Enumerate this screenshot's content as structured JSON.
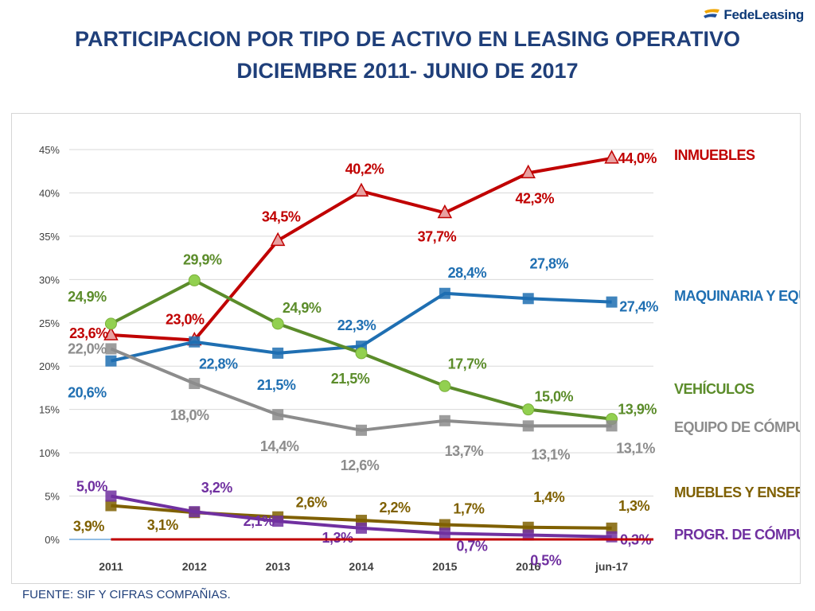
{
  "logo": {
    "text": "FedeLeasing",
    "prefix": "Fede",
    "suffix": "Leasing"
  },
  "title": {
    "line1": "PARTICIPACION POR TIPO DE ACTIVO EN  LEASING OPERATIVO",
    "line2": "DICIEMBRE 2011- JUNIO DE 2017"
  },
  "footer": "FUENTE: SIF Y CIFRAS COMPAÑIAS.",
  "chart_data": {
    "type": "line",
    "title": "PARTICIPACION POR TIPO DE ACTIVO EN  LEASING OPERATIVO DICIEMBRE 2011- JUNIO DE 2017",
    "categories": [
      "2011",
      "2012",
      "2013",
      "2014",
      "2015",
      "2016",
      "jun-17"
    ],
    "ylim": [
      0,
      45
    ],
    "yticks": [
      0,
      5,
      10,
      15,
      20,
      25,
      30,
      35,
      40,
      45
    ],
    "ytick_labels": [
      "0%",
      "5%",
      "10%",
      "15%",
      "20%",
      "25%",
      "30%",
      "35%",
      "40%",
      "45%"
    ],
    "grid": true,
    "series": [
      {
        "name": "INMUEBLES",
        "color": "#c00000",
        "marker": "triangle",
        "values": [
          23.6,
          23.0,
          34.5,
          40.2,
          37.7,
          42.3,
          44.0
        ],
        "labels": [
          "23,6%",
          "23,0%",
          "34,5%",
          "40,2%",
          "37,7%",
          "42,3%",
          "44,0%"
        ]
      },
      {
        "name": "MAQUINARIA  Y EQUIPO",
        "color": "#1f6fb2",
        "marker": "square",
        "values": [
          20.6,
          22.8,
          21.5,
          22.3,
          28.4,
          27.8,
          27.4
        ],
        "labels": [
          "20,6%",
          "22,8%",
          "21,5%",
          "22,3%",
          "28,4%",
          "27,8%",
          "27,4%"
        ]
      },
      {
        "name": "VEHÍCULOS",
        "color": "#5b8c2a",
        "marker": "circle",
        "values": [
          24.9,
          29.9,
          24.9,
          21.5,
          17.7,
          15.0,
          13.9
        ],
        "labels": [
          "24,9%",
          "29,9%",
          "24,9%",
          "21,5%",
          "17,7%",
          "15,0%",
          "13,9%"
        ]
      },
      {
        "name": "EQUIPO DE  CÓMPUTO",
        "color": "#8c8c8c",
        "marker": "square",
        "values": [
          22.0,
          18.0,
          14.4,
          12.6,
          13.7,
          13.1,
          13.1
        ],
        "labels": [
          "22,0%",
          "18,0%",
          "14,4%",
          "12,6%",
          "13,7%",
          "13,1%",
          "13,1%"
        ]
      },
      {
        "name": "MUEBLES Y ENSERES",
        "color": "#7f6000",
        "marker": "square",
        "values": [
          3.9,
          3.1,
          2.6,
          2.2,
          1.7,
          1.4,
          1.3
        ],
        "labels": [
          "3,9%",
          "3,1%",
          "2,6%",
          "2,2%",
          "1,7%",
          "1,4%",
          "1,3%"
        ]
      },
      {
        "name": "PROGR. DE CÓMPUTO",
        "color": "#7030a0",
        "marker": "square",
        "values": [
          5.0,
          3.2,
          2.1,
          1.3,
          0.7,
          0.5,
          0.3
        ],
        "labels": [
          "5,0%",
          "3,2%",
          "2,1%",
          "1,3%",
          "0,7%",
          "0,5%",
          "0,3%"
        ]
      }
    ]
  }
}
